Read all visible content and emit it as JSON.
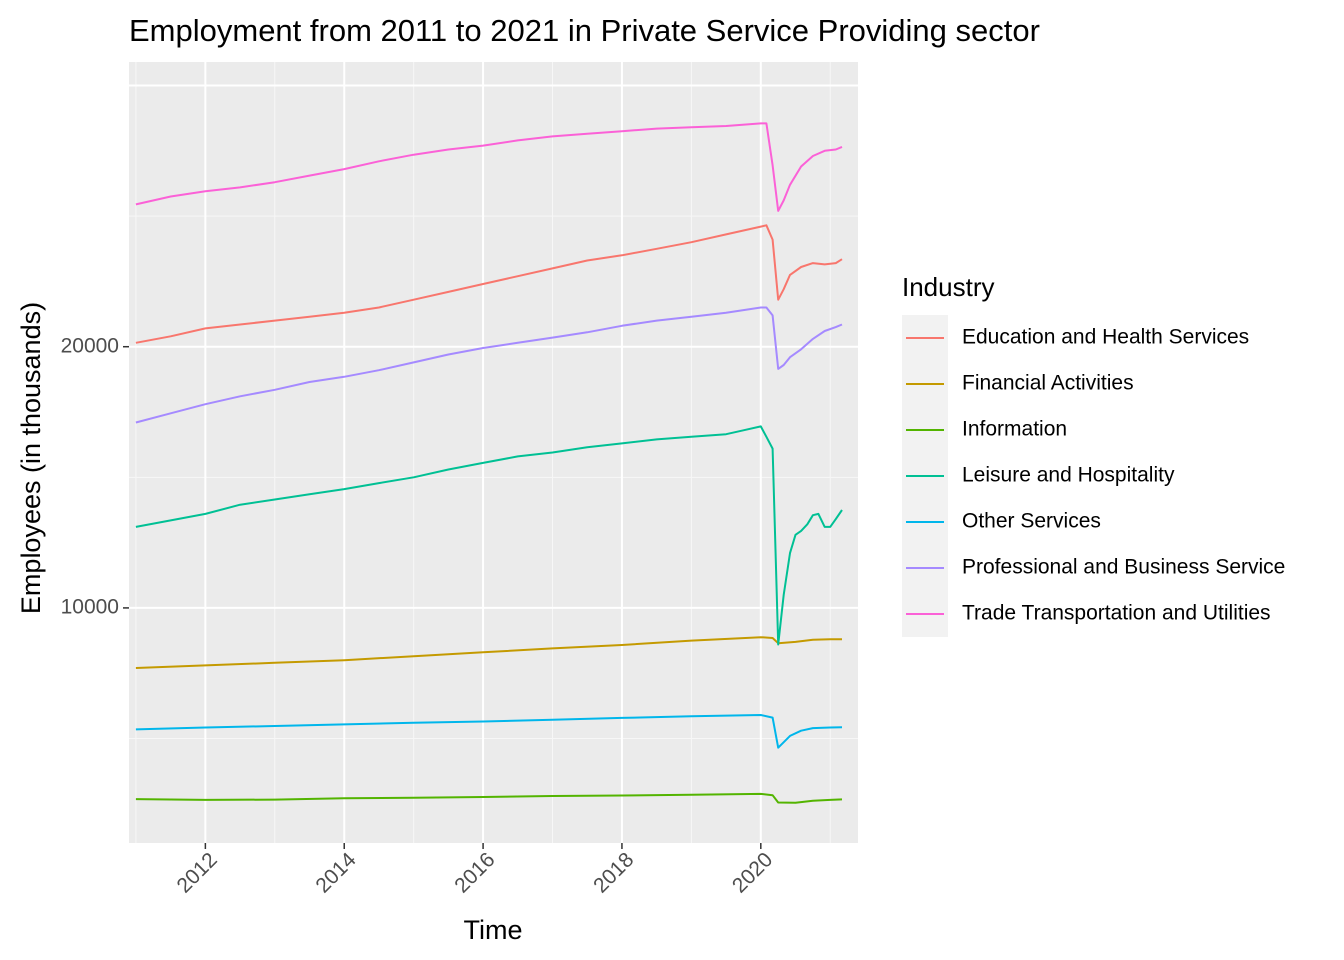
{
  "chart_data": {
    "type": "line",
    "title": "Employment from 2011 to 2021 in Private Service Providing sector",
    "xlabel": "Time",
    "ylabel": "Employees (in thousands)",
    "x_ticks": [
      "2012",
      "2014",
      "2016",
      "2018",
      "2020"
    ],
    "y_ticks": [
      "10000",
      "20000"
    ],
    "xlim": [
      2010.9,
      2021.4
    ],
    "ylim": [
      1000,
      30900
    ],
    "grid": true,
    "legend": {
      "title": "Industry",
      "position": "right"
    },
    "series": [
      {
        "name": "Education and Health Services",
        "color": "#F8766D",
        "points": [
          [
            2011.0,
            20150
          ],
          [
            2011.5,
            20400
          ],
          [
            2012.0,
            20700
          ],
          [
            2012.5,
            20850
          ],
          [
            2013.0,
            21000
          ],
          [
            2013.5,
            21150
          ],
          [
            2014.0,
            21300
          ],
          [
            2014.5,
            21500
          ],
          [
            2015.0,
            21800
          ],
          [
            2015.5,
            22100
          ],
          [
            2016.0,
            22400
          ],
          [
            2016.5,
            22700
          ],
          [
            2017.0,
            23000
          ],
          [
            2017.5,
            23300
          ],
          [
            2018.0,
            23500
          ],
          [
            2018.5,
            23750
          ],
          [
            2019.0,
            24000
          ],
          [
            2019.5,
            24300
          ],
          [
            2020.0,
            24600
          ],
          [
            2020.08,
            24650
          ],
          [
            2020.17,
            24100
          ],
          [
            2020.25,
            21800
          ],
          [
            2020.33,
            22200
          ],
          [
            2020.42,
            22750
          ],
          [
            2020.58,
            23050
          ],
          [
            2020.75,
            23200
          ],
          [
            2020.92,
            23150
          ],
          [
            2021.08,
            23200
          ],
          [
            2021.17,
            23350
          ]
        ]
      },
      {
        "name": "Financial Activities",
        "color": "#C49A00",
        "points": [
          [
            2011.0,
            7700
          ],
          [
            2012.0,
            7800
          ],
          [
            2013.0,
            7900
          ],
          [
            2014.0,
            8000
          ],
          [
            2015.0,
            8150
          ],
          [
            2016.0,
            8300
          ],
          [
            2017.0,
            8450
          ],
          [
            2018.0,
            8580
          ],
          [
            2019.0,
            8750
          ],
          [
            2020.0,
            8880
          ],
          [
            2020.17,
            8850
          ],
          [
            2020.25,
            8650
          ],
          [
            2020.5,
            8700
          ],
          [
            2020.75,
            8780
          ],
          [
            2021.0,
            8800
          ],
          [
            2021.17,
            8800
          ]
        ]
      },
      {
        "name": "Information",
        "color": "#53B400",
        "points": [
          [
            2011.0,
            2680
          ],
          [
            2012.0,
            2650
          ],
          [
            2013.0,
            2660
          ],
          [
            2014.0,
            2710
          ],
          [
            2015.0,
            2730
          ],
          [
            2016.0,
            2760
          ],
          [
            2017.0,
            2800
          ],
          [
            2018.0,
            2820
          ],
          [
            2019.0,
            2850
          ],
          [
            2020.0,
            2880
          ],
          [
            2020.17,
            2830
          ],
          [
            2020.25,
            2550
          ],
          [
            2020.5,
            2540
          ],
          [
            2020.75,
            2620
          ],
          [
            2021.0,
            2650
          ],
          [
            2021.17,
            2670
          ]
        ]
      },
      {
        "name": "Leisure and Hospitality",
        "color": "#00C094",
        "points": [
          [
            2011.0,
            13100
          ],
          [
            2011.5,
            13350
          ],
          [
            2012.0,
            13600
          ],
          [
            2012.5,
            13950
          ],
          [
            2013.0,
            14150
          ],
          [
            2013.5,
            14350
          ],
          [
            2014.0,
            14550
          ],
          [
            2014.5,
            14780
          ],
          [
            2015.0,
            15000
          ],
          [
            2015.5,
            15300
          ],
          [
            2016.0,
            15550
          ],
          [
            2016.5,
            15800
          ],
          [
            2017.0,
            15950
          ],
          [
            2017.5,
            16150
          ],
          [
            2018.0,
            16300
          ],
          [
            2018.5,
            16450
          ],
          [
            2019.0,
            16550
          ],
          [
            2019.5,
            16650
          ],
          [
            2019.75,
            16800
          ],
          [
            2020.0,
            16950
          ],
          [
            2020.08,
            16550
          ],
          [
            2020.17,
            16100
          ],
          [
            2020.25,
            8600
          ],
          [
            2020.33,
            10500
          ],
          [
            2020.42,
            12100
          ],
          [
            2020.5,
            12800
          ],
          [
            2020.58,
            12950
          ],
          [
            2020.67,
            13200
          ],
          [
            2020.75,
            13550
          ],
          [
            2020.83,
            13600
          ],
          [
            2020.92,
            13100
          ],
          [
            2021.0,
            13100
          ],
          [
            2021.08,
            13400
          ],
          [
            2021.17,
            13750
          ]
        ]
      },
      {
        "name": "Other Services",
        "color": "#00B6EB",
        "points": [
          [
            2011.0,
            5350
          ],
          [
            2012.0,
            5420
          ],
          [
            2013.0,
            5480
          ],
          [
            2014.0,
            5540
          ],
          [
            2015.0,
            5600
          ],
          [
            2016.0,
            5650
          ],
          [
            2017.0,
            5720
          ],
          [
            2018.0,
            5790
          ],
          [
            2019.0,
            5850
          ],
          [
            2020.0,
            5900
          ],
          [
            2020.17,
            5800
          ],
          [
            2020.25,
            4650
          ],
          [
            2020.42,
            5100
          ],
          [
            2020.58,
            5300
          ],
          [
            2020.75,
            5400
          ],
          [
            2021.0,
            5420
          ],
          [
            2021.17,
            5430
          ]
        ]
      },
      {
        "name": "Professional and Business Service",
        "color": "#A58AFF",
        "points": [
          [
            2011.0,
            17100
          ],
          [
            2011.5,
            17450
          ],
          [
            2012.0,
            17800
          ],
          [
            2012.5,
            18100
          ],
          [
            2013.0,
            18350
          ],
          [
            2013.5,
            18650
          ],
          [
            2014.0,
            18850
          ],
          [
            2014.5,
            19100
          ],
          [
            2015.0,
            19400
          ],
          [
            2015.5,
            19700
          ],
          [
            2016.0,
            19950
          ],
          [
            2016.5,
            20150
          ],
          [
            2017.0,
            20350
          ],
          [
            2017.5,
            20550
          ],
          [
            2018.0,
            20800
          ],
          [
            2018.5,
            21000
          ],
          [
            2019.0,
            21150
          ],
          [
            2019.5,
            21300
          ],
          [
            2020.0,
            21500
          ],
          [
            2020.08,
            21500
          ],
          [
            2020.17,
            21200
          ],
          [
            2020.25,
            19150
          ],
          [
            2020.33,
            19300
          ],
          [
            2020.42,
            19600
          ],
          [
            2020.58,
            19900
          ],
          [
            2020.75,
            20300
          ],
          [
            2020.92,
            20600
          ],
          [
            2021.08,
            20750
          ],
          [
            2021.17,
            20850
          ]
        ]
      },
      {
        "name": "Trade Transportation and Utilities",
        "color": "#FB61D7",
        "points": [
          [
            2011.0,
            25450
          ],
          [
            2011.5,
            25750
          ],
          [
            2012.0,
            25950
          ],
          [
            2012.5,
            26100
          ],
          [
            2013.0,
            26300
          ],
          [
            2013.5,
            26550
          ],
          [
            2014.0,
            26800
          ],
          [
            2014.5,
            27100
          ],
          [
            2015.0,
            27350
          ],
          [
            2015.5,
            27550
          ],
          [
            2016.0,
            27700
          ],
          [
            2016.5,
            27900
          ],
          [
            2017.0,
            28050
          ],
          [
            2017.5,
            28150
          ],
          [
            2018.0,
            28250
          ],
          [
            2018.5,
            28350
          ],
          [
            2019.0,
            28400
          ],
          [
            2019.5,
            28450
          ],
          [
            2020.0,
            28550
          ],
          [
            2020.08,
            28550
          ],
          [
            2020.17,
            26950
          ],
          [
            2020.25,
            25200
          ],
          [
            2020.33,
            25600
          ],
          [
            2020.42,
            26200
          ],
          [
            2020.58,
            26900
          ],
          [
            2020.75,
            27300
          ],
          [
            2020.92,
            27500
          ],
          [
            2021.08,
            27550
          ],
          [
            2021.17,
            27650
          ]
        ]
      }
    ]
  }
}
